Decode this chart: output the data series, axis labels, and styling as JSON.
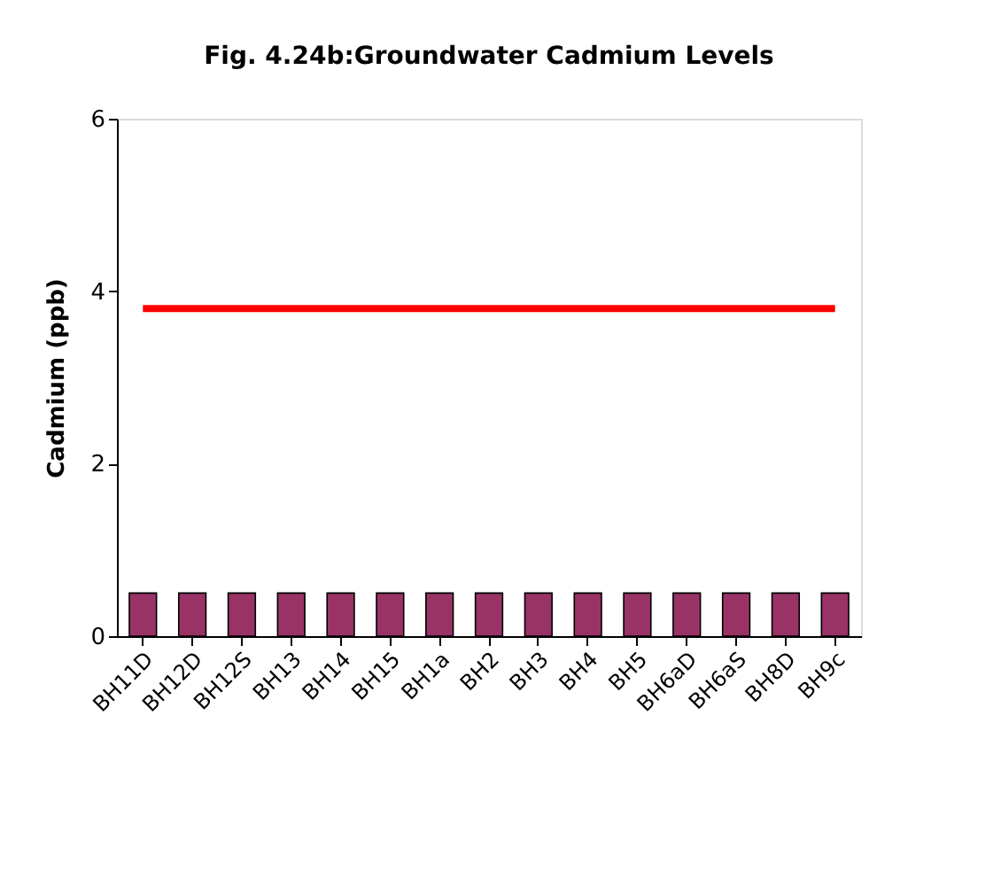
{
  "chart_data": {
    "type": "bar",
    "title": "Fig. 4.24b:Groundwater Cadmium Levels",
    "ylabel": "Cadmium (ppb)",
    "categories": [
      "BH11D",
      "BH12D",
      "BH12S",
      "BH13",
      "BH14",
      "BH15",
      "BH1a",
      "BH2",
      "BH3",
      "BH4",
      "BH5",
      "BH6aD",
      "BH6aS",
      "BH8D",
      "BH9c"
    ],
    "series": [
      {
        "color": "#993366",
        "values": [
          0.5,
          0.5,
          0.5,
          0.5,
          0.5,
          0.5,
          0.5,
          0.5,
          0.5,
          0.5,
          0.5,
          0.5,
          0.5,
          0.5,
          0.5
        ]
      },
      {
        "type": "line",
        "color": "#ff0000",
        "values": [
          3.8,
          3.8,
          3.8,
          3.8,
          3.8,
          3.8,
          3.8,
          3.8,
          3.8,
          3.8,
          3.8,
          3.8,
          3.8,
          3.8,
          3.8
        ]
      }
    ],
    "ylim": [
      0,
      6
    ],
    "yticks": [
      0,
      2,
      4,
      6
    ],
    "grid": false
  }
}
